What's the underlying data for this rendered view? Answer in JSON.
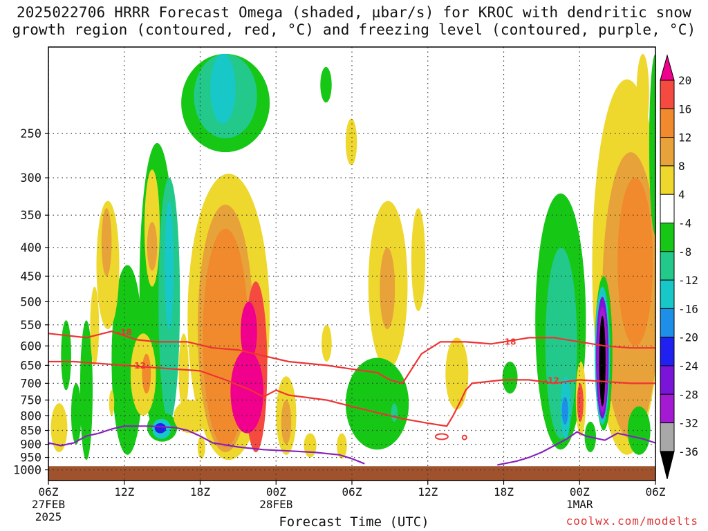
{
  "title": {
    "line1": "2025022706 HRRR Forecast Omega (shaded, µbar/s) for KROC with dendritic snow",
    "line2": "growth region (contoured, red, °C) and freezing level (contoured, purple, °C)"
  },
  "credit": "coolwx.com/modelts",
  "chart_data": {
    "type": "heatmap",
    "title": "2025022706 HRRR Forecast Omega (shaded, µbar/s) for KROC with dendritic snow growth region (contoured, red, °C) and freezing level (contoured, purple, °C)",
    "xlabel": "Forecast Time (UTC)",
    "ylabel": "",
    "x_range_hours": [
      0,
      48
    ],
    "y_levels_hPa": [
      250,
      300,
      350,
      400,
      450,
      500,
      550,
      600,
      650,
      700,
      750,
      800,
      850,
      900,
      950,
      1000
    ],
    "x_ticks": [
      {
        "h": 0,
        "l1": "06Z",
        "l2": "27FEB",
        "l3": "2025"
      },
      {
        "h": 6,
        "l1": "12Z",
        "l2": "",
        "l3": ""
      },
      {
        "h": 12,
        "l1": "18Z",
        "l2": "",
        "l3": ""
      },
      {
        "h": 18,
        "l1": "00Z",
        "l2": "28FEB",
        "l3": ""
      },
      {
        "h": 24,
        "l1": "06Z",
        "l2": "",
        "l3": ""
      },
      {
        "h": 30,
        "l1": "12Z",
        "l2": "",
        "l3": ""
      },
      {
        "h": 36,
        "l1": "18Z",
        "l2": "",
        "l3": ""
      },
      {
        "h": 42,
        "l1": "00Z",
        "l2": "1MAR",
        "l3": ""
      },
      {
        "h": 48,
        "l1": "06Z",
        "l2": "",
        "l3": ""
      }
    ],
    "grid": true,
    "colorbar": {
      "labels": [
        "20",
        "16",
        "12",
        "8",
        "4",
        "-4",
        "-8",
        "-12",
        "-16",
        "-20",
        "-24",
        "-28",
        "-32",
        "-36"
      ],
      "colors": [
        "#f0008c",
        "#f54a40",
        "#f08a2c",
        "#e8a23a",
        "#eed82e",
        "#ffffff",
        "#16c716",
        "#22c98a",
        "#18c8c8",
        "#1e8fe8",
        "#2020f0",
        "#7a14d8",
        "#a41ad2",
        "#a8a8a8",
        "#000000"
      ]
    },
    "features": [
      {
        "h0": 2.5,
        "h1": 3.5,
        "p0": 540,
        "p1": 960,
        "v": -8
      },
      {
        "h0": 1.0,
        "h1": 1.8,
        "p0": 540,
        "p1": 720,
        "v": -8
      },
      {
        "h0": 0.2,
        "h1": 1.5,
        "p0": 760,
        "p1": 930,
        "v": 4
      },
      {
        "h0": 3.3,
        "h1": 4.0,
        "p0": 470,
        "p1": 650,
        "v": 4
      },
      {
        "h0": 1.8,
        "h1": 2.6,
        "p0": 700,
        "p1": 900,
        "v": -8
      },
      {
        "h0": 5.0,
        "h1": 7.5,
        "p0": 430,
        "p1": 940,
        "v": -8
      },
      {
        "h0": 7.2,
        "h1": 10.0,
        "p0": 260,
        "p1": 860,
        "v": -8
      },
      {
        "h0": 8.7,
        "h1": 10.4,
        "p0": 300,
        "p1": 820,
        "v": -12
      },
      {
        "h0": 9.2,
        "h1": 9.9,
        "p0": 330,
        "p1": 560,
        "v": -16
      },
      {
        "h0": 3.8,
        "h1": 5.6,
        "p0": 330,
        "p1": 560,
        "v": 4
      },
      {
        "h0": 4.2,
        "h1": 5.0,
        "p0": 340,
        "p1": 450,
        "v": 8
      },
      {
        "h0": 7.6,
        "h1": 8.8,
        "p0": 290,
        "p1": 470,
        "v": 4
      },
      {
        "h0": 7.8,
        "h1": 8.6,
        "p0": 360,
        "p1": 440,
        "v": 8
      },
      {
        "h0": 6.5,
        "h1": 8.5,
        "p0": 570,
        "p1": 800,
        "v": 4
      },
      {
        "h0": 7.4,
        "h1": 8.1,
        "p0": 620,
        "p1": 730,
        "v": 12
      },
      {
        "h0": 5.8,
        "h1": 7.2,
        "p0": 470,
        "p1": 600,
        "v": -8
      },
      {
        "h0": 7.8,
        "h1": 10.2,
        "p0": 790,
        "p1": 890,
        "v": -8
      },
      {
        "h0": 8.2,
        "h1": 9.7,
        "p0": 810,
        "p1": 880,
        "v": -16
      },
      {
        "h0": 8.4,
        "h1": 9.3,
        "p0": 825,
        "p1": 860,
        "v": -24
      },
      {
        "h0": 10.3,
        "h1": 11.1,
        "p0": 570,
        "p1": 780,
        "v": 4
      },
      {
        "h0": 9.9,
        "h1": 12.6,
        "p0": 750,
        "p1": 860,
        "v": 4
      },
      {
        "h0": 11.8,
        "h1": 12.4,
        "p0": 870,
        "p1": 955,
        "v": 4
      },
      {
        "h0": 4.8,
        "h1": 5.2,
        "p0": 720,
        "p1": 800,
        "v": 4
      },
      {
        "h0": 10.5,
        "h1": 17.5,
        "p0": 180,
        "p1": 270,
        "v": -8
      },
      {
        "h0": 11.5,
        "h1": 16.5,
        "p0": 180,
        "p1": 255,
        "v": -12
      },
      {
        "h0": 12.8,
        "h1": 14.8,
        "p0": 180,
        "p1": 240,
        "v": -16
      },
      {
        "h0": 21.5,
        "h1": 22.4,
        "p0": 190,
        "p1": 220,
        "v": -8
      },
      {
        "h0": 23.5,
        "h1": 24.4,
        "p0": 235,
        "p1": 285,
        "v": 4
      },
      {
        "h0": 11.0,
        "h1": 17.5,
        "p0": 295,
        "p1": 960,
        "v": 4
      },
      {
        "h0": 11.8,
        "h1": 16.2,
        "p0": 335,
        "p1": 930,
        "v": 8
      },
      {
        "h0": 12.2,
        "h1": 15.8,
        "p0": 370,
        "p1": 910,
        "v": 12
      },
      {
        "h0": 15.5,
        "h1": 17.3,
        "p0": 460,
        "p1": 930,
        "v": 16
      },
      {
        "h0": 14.4,
        "h1": 17.0,
        "p0": 610,
        "p1": 860,
        "v": 20
      },
      {
        "h0": 15.2,
        "h1": 16.5,
        "p0": 500,
        "p1": 640,
        "v": 20
      },
      {
        "h0": 13.6,
        "h1": 14.4,
        "p0": 770,
        "p1": 880,
        "v": 12
      },
      {
        "h0": 18.0,
        "h1": 19.6,
        "p0": 680,
        "p1": 940,
        "v": 4
      },
      {
        "h0": 18.4,
        "h1": 19.2,
        "p0": 750,
        "p1": 900,
        "v": 8
      },
      {
        "h0": 20.2,
        "h1": 21.2,
        "p0": 860,
        "p1": 950,
        "v": 4
      },
      {
        "h0": 21.6,
        "h1": 22.4,
        "p0": 550,
        "p1": 640,
        "v": 4
      },
      {
        "h0": 22.8,
        "h1": 23.6,
        "p0": 860,
        "p1": 955,
        "v": 4
      },
      {
        "h0": 25.3,
        "h1": 28.4,
        "p0": 330,
        "p1": 660,
        "v": 4
      },
      {
        "h0": 26.2,
        "h1": 27.4,
        "p0": 400,
        "p1": 560,
        "v": 8
      },
      {
        "h0": 23.5,
        "h1": 28.5,
        "p0": 630,
        "p1": 920,
        "v": -8
      },
      {
        "h0": 27.1,
        "h1": 27.6,
        "p0": 760,
        "p1": 820,
        "v": -12
      },
      {
        "h0": 28.7,
        "h1": 29.8,
        "p0": 340,
        "p1": 520,
        "v": 4
      },
      {
        "h0": 31.4,
        "h1": 33.2,
        "p0": 580,
        "p1": 780,
        "v": 4
      },
      {
        "h0": 35.9,
        "h1": 37.1,
        "p0": 640,
        "p1": 730,
        "v": -8
      },
      {
        "h0": 38.5,
        "h1": 42.5,
        "p0": 320,
        "p1": 920,
        "v": -8
      },
      {
        "h0": 39.3,
        "h1": 41.8,
        "p0": 400,
        "p1": 880,
        "v": -12
      },
      {
        "h0": 40.5,
        "h1": 41.3,
        "p0": 680,
        "p1": 880,
        "v": -16
      },
      {
        "h0": 40.6,
        "h1": 41.1,
        "p0": 740,
        "p1": 830,
        "v": -20
      },
      {
        "h0": 41.7,
        "h1": 42.5,
        "p0": 640,
        "p1": 870,
        "v": 4
      },
      {
        "h0": 41.8,
        "h1": 42.3,
        "p0": 700,
        "p1": 820,
        "v": 16
      },
      {
        "h0": 43.0,
        "h1": 48.5,
        "p0": 200,
        "p1": 940,
        "v": 4
      },
      {
        "h0": 43.8,
        "h1": 48.3,
        "p0": 270,
        "p1": 880,
        "v": 8
      },
      {
        "h0": 45.0,
        "h1": 47.8,
        "p0": 300,
        "p1": 600,
        "v": 12
      },
      {
        "h0": 43.2,
        "h1": 44.6,
        "p0": 450,
        "p1": 850,
        "v": -8
      },
      {
        "h0": 43.2,
        "h1": 44.4,
        "p0": 470,
        "p1": 830,
        "v": -16
      },
      {
        "h0": 43.3,
        "h1": 44.3,
        "p0": 490,
        "p1": 810,
        "v": -28
      },
      {
        "h0": 43.4,
        "h1": 44.2,
        "p0": 510,
        "p1": 790,
        "v": -32
      },
      {
        "h0": 43.55,
        "h1": 44.05,
        "p0": 530,
        "p1": 770,
        "v": -36
      },
      {
        "h0": 45.8,
        "h1": 47.6,
        "p0": 770,
        "p1": 940,
        "v": -8
      },
      {
        "h0": 42.4,
        "h1": 43.3,
        "p0": 820,
        "p1": 930,
        "v": -8
      },
      {
        "h0": 46.5,
        "h1": 47.5,
        "p0": 180,
        "p1": 250,
        "v": 4
      },
      {
        "h0": 47.5,
        "h1": 48.5,
        "p0": 180,
        "p1": 380,
        "v": -8
      }
    ],
    "contours": [
      {
        "label": "-18",
        "color": "#ee3333",
        "h_label": 5.2,
        "points": [
          [
            0,
            570
          ],
          [
            3,
            580
          ],
          [
            5,
            565
          ],
          [
            6,
            575
          ],
          [
            7,
            585
          ],
          [
            8.5,
            590
          ],
          [
            10,
            590
          ],
          [
            11,
            590
          ],
          [
            13,
            605
          ],
          [
            15,
            610
          ],
          [
            17,
            625
          ],
          [
            19,
            640
          ],
          [
            22,
            650
          ],
          [
            24,
            660
          ],
          [
            26,
            670
          ],
          [
            27,
            690
          ],
          [
            28,
            700
          ],
          [
            29.5,
            620
          ],
          [
            31,
            590
          ],
          [
            33,
            590
          ],
          [
            35,
            595
          ],
          [
            36,
            590
          ],
          [
            37,
            585
          ],
          [
            38,
            580
          ],
          [
            40,
            580
          ],
          [
            41,
            585
          ],
          [
            42,
            590
          ],
          [
            44,
            600
          ],
          [
            46,
            605
          ],
          [
            48,
            605
          ]
        ]
      },
      {
        "label": "-12",
        "color": "#ee3333",
        "h_label": 6.3,
        "points": [
          [
            0,
            640
          ],
          [
            2,
            640
          ],
          [
            4,
            645
          ],
          [
            6,
            650
          ],
          [
            8,
            655
          ],
          [
            10,
            660
          ],
          [
            12,
            665
          ],
          [
            14,
            690
          ],
          [
            16,
            720
          ],
          [
            17,
            740
          ],
          [
            18,
            720
          ],
          [
            19,
            735
          ],
          [
            22,
            750
          ],
          [
            24,
            770
          ],
          [
            26,
            790
          ],
          [
            28,
            810
          ],
          [
            30,
            825
          ],
          [
            31.5,
            835
          ],
          [
            32,
            800
          ],
          [
            32.5,
            760
          ],
          [
            33,
            720
          ],
          [
            33.5,
            700
          ],
          [
            36,
            690
          ],
          [
            38,
            690
          ],
          [
            40,
            700
          ],
          [
            42,
            690
          ],
          [
            44,
            695
          ],
          [
            46,
            700
          ],
          [
            48,
            700
          ]
        ]
      },
      {
        "label": "",
        "color": "#8822bb",
        "h_label": 0,
        "points": [
          [
            0,
            895
          ],
          [
            1,
            905
          ],
          [
            2,
            895
          ],
          [
            3,
            870
          ],
          [
            4,
            860
          ],
          [
            5,
            845
          ],
          [
            6,
            835
          ],
          [
            8,
            835
          ],
          [
            10,
            840
          ],
          [
            11,
            850
          ],
          [
            12,
            870
          ],
          [
            13,
            895
          ],
          [
            15,
            910
          ],
          [
            17,
            920
          ],
          [
            19,
            925
          ],
          [
            21,
            930
          ],
          [
            23,
            940
          ],
          [
            24,
            955
          ],
          [
            25,
            975
          ]
        ]
      },
      {
        "label": "",
        "color": "#8822bb",
        "h_label": 0,
        "points": [
          [
            35.5,
            980
          ],
          [
            36,
            975
          ],
          [
            37,
            965
          ],
          [
            38,
            950
          ],
          [
            39,
            930
          ],
          [
            40,
            905
          ],
          [
            41,
            880
          ],
          [
            41.8,
            855
          ],
          [
            42.5,
            870
          ],
          [
            43,
            875
          ],
          [
            44,
            885
          ],
          [
            45,
            860
          ],
          [
            46,
            870
          ],
          [
            47,
            880
          ],
          [
            48,
            895
          ]
        ]
      }
    ],
    "ovals": [
      {
        "h": 31.1,
        "p": 872,
        "rx": 9,
        "ry": 4,
        "color": "#ee3333"
      },
      {
        "h": 32.9,
        "p": 875,
        "rx": 3,
        "ry": 3,
        "color": "#ee3333"
      }
    ],
    "terrain_color": "#a0522d"
  }
}
